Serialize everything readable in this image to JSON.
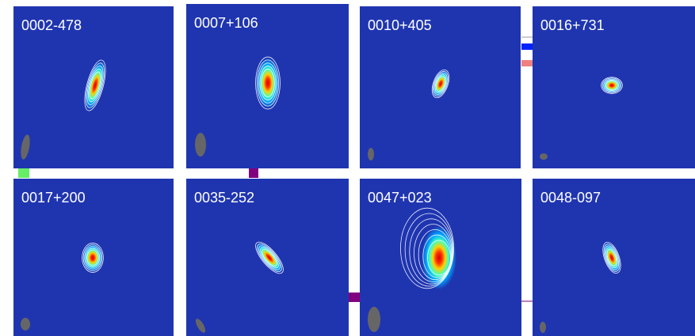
{
  "panels": [
    {
      "label": "0002-478"
    },
    {
      "label": "0007+106"
    },
    {
      "label": "0010+405"
    },
    {
      "label": "0016+731"
    },
    {
      "label": "0017+200"
    },
    {
      "label": "0035-252"
    },
    {
      "label": "0047+023"
    },
    {
      "label": "0048-097"
    }
  ]
}
